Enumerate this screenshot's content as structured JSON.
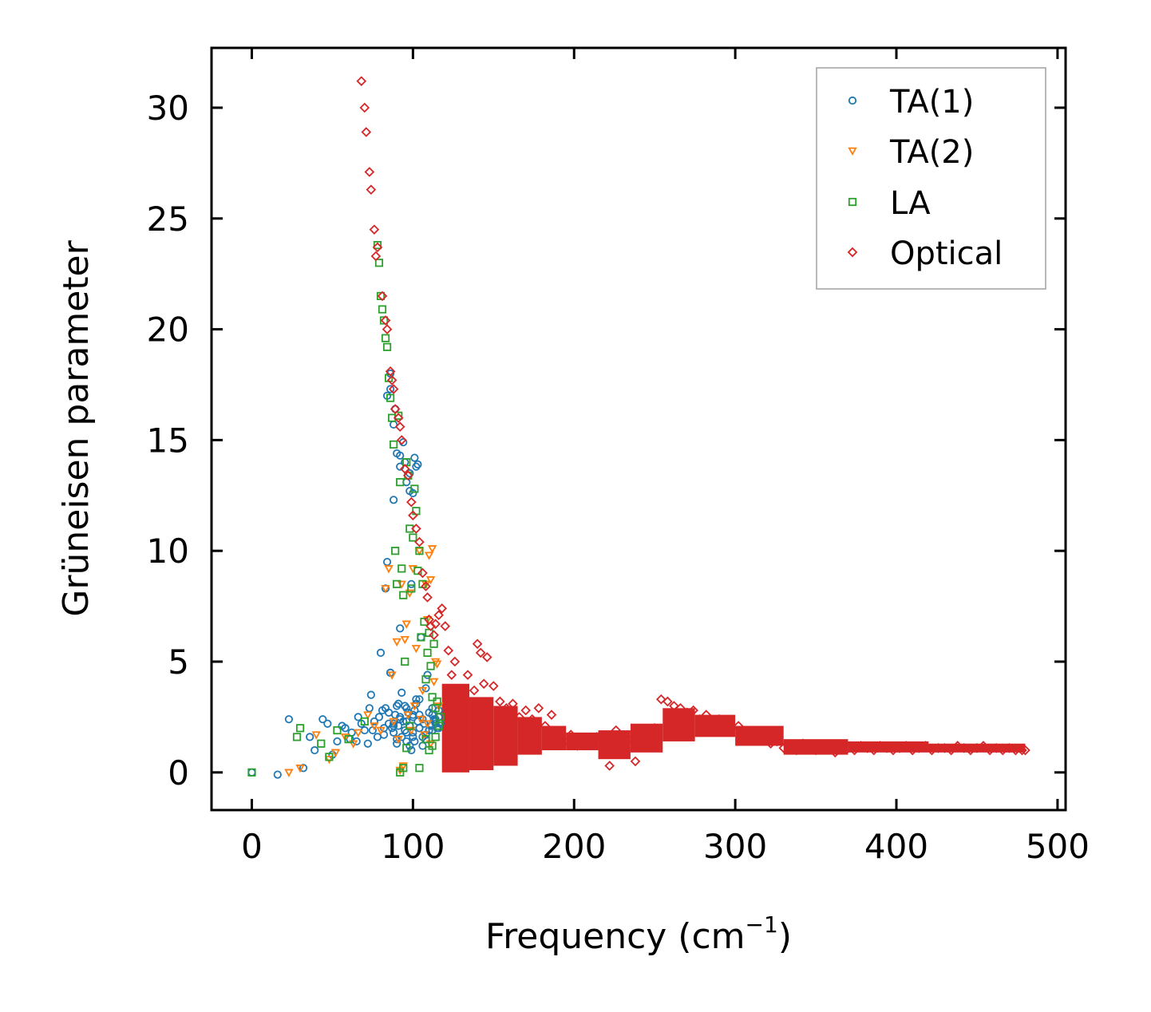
{
  "chart_data": {
    "type": "scatter",
    "title": "",
    "xlabel": "Frequency (cm",
    "xlabel_sup": "−1",
    "xlabel_end": ")",
    "ylabel": "Grüneisen parameter",
    "xlim": [
      -25,
      505
    ],
    "ylim": [
      -1.7,
      32.7
    ],
    "xticks": [
      0,
      100,
      200,
      300,
      400,
      500
    ],
    "yticks": [
      0,
      5,
      10,
      15,
      20,
      25,
      30
    ],
    "xtick_labels": [
      "0",
      "100",
      "200",
      "300",
      "400",
      "500"
    ],
    "ytick_labels": [
      "0",
      "5",
      "10",
      "15",
      "20",
      "25",
      "30"
    ],
    "legend_position": "top-right",
    "grid": false,
    "series": [
      {
        "name": "TA(1)",
        "marker": "circle",
        "color": "#1f77b4",
        "x": [
          0,
          16,
          23,
          32,
          36,
          39,
          44,
          47,
          50,
          53,
          56,
          58,
          61,
          62,
          65,
          66,
          68,
          70,
          72,
          73,
          74,
          75,
          76,
          78,
          79,
          80,
          81,
          82,
          83,
          84,
          85,
          86,
          87,
          88,
          89,
          90,
          90,
          91,
          92,
          93,
          94,
          95,
          96,
          97,
          98,
          99,
          100,
          101,
          102,
          103,
          104,
          105,
          106,
          107,
          108,
          109,
          110,
          111,
          112,
          113,
          114,
          115,
          116,
          117,
          84,
          86,
          88,
          90,
          92,
          94,
          96,
          98,
          100,
          102,
          86,
          89,
          92,
          95,
          98,
          101,
          103,
          83,
          86,
          88,
          91,
          93,
          96,
          99,
          101,
          104,
          82,
          85,
          88,
          92,
          95,
          98,
          100,
          88,
          90,
          92,
          96,
          100,
          104,
          108,
          112,
          102,
          106,
          110,
          114,
          116,
          96,
          100,
          104,
          108,
          112,
          116,
          106,
          110,
          114
        ],
        "y": [
          0,
          -0.1,
          2.4,
          0.2,
          1.6,
          1.0,
          2.4,
          2.2,
          0.8,
          1.4,
          2.1,
          2.0,
          1.5,
          1.8,
          1.4,
          2.5,
          2.2,
          1.9,
          1.3,
          2.9,
          3.5,
          1.9,
          2.3,
          1.6,
          2.5,
          5.4,
          2.8,
          1.7,
          2.9,
          9.5,
          2.2,
          4.5,
          2.0,
          12.3,
          2.6,
          3.0,
          1.5,
          2.1,
          6.5,
          3.6,
          2.3,
          1.9,
          2.9,
          2.7,
          1.2,
          8.5,
          1.8,
          2.8,
          3.3,
          2.3,
          2.0,
          6.1,
          1.6,
          2.2,
          3.8,
          4.4,
          2.7,
          2.1,
          1.9,
          2.4,
          2.3,
          2.0,
          2.5,
          2.2,
          17.0,
          17.3,
          15.7,
          14.4,
          13.8,
          14.9,
          13.1,
          12.7,
          12.6,
          13.8,
          18.0,
          16.4,
          14.3,
          14.0,
          13.5,
          14.2,
          13.9,
          8.3,
          4.5,
          2.1,
          3.1,
          1.6,
          2.3,
          1.0,
          1.4,
          2.6,
          2.0,
          2.7,
          1.8,
          2.5,
          3.0,
          2.1,
          1.6,
          2.2,
          1.3,
          2.4,
          1.8,
          2.6,
          2.0,
          1.5,
          2.9,
          3.1,
          2.4,
          1.9,
          2.2,
          2.8,
          1.4,
          2.5,
          3.3,
          1.7,
          2.6,
          2.0,
          1.2,
          1.9,
          2.4
        ]
      },
      {
        "name": "TA(2)",
        "marker": "triangle-down",
        "color": "#ff7f0e",
        "x": [
          23,
          30,
          40,
          48,
          52,
          58,
          63,
          66,
          72,
          76,
          80,
          83,
          85,
          87,
          88,
          90,
          91,
          93,
          95,
          96,
          98,
          100,
          102,
          104,
          106,
          108,
          109,
          110,
          111,
          112,
          113,
          114,
          115,
          116,
          92,
          94,
          97,
          99,
          101,
          105,
          107,
          109,
          111
        ],
        "y": [
          0,
          0.2,
          1.7,
          0.6,
          0.9,
          1.6,
          1.3,
          1.8,
          2.6,
          2.1,
          1.9,
          8.3,
          9.2,
          4.4,
          2.3,
          5.9,
          1.5,
          8.5,
          6.0,
          6.7,
          8.1,
          9.2,
          5.6,
          10.0,
          3.7,
          8.5,
          6.9,
          9.8,
          8.7,
          10.1,
          4.1,
          5.0,
          4.9,
          3.0,
          0.1,
          0.3,
          2.6,
          1.9,
          3.0,
          2.4,
          1.7,
          2.2,
          1.3
        ]
      },
      {
        "name": "LA",
        "marker": "square",
        "color": "#2ca02c",
        "x": [
          0,
          28,
          30,
          43,
          48,
          53,
          60,
          70,
          78,
          79,
          80,
          81,
          82,
          83,
          84,
          85,
          86,
          87,
          88,
          89,
          90,
          91,
          92,
          93,
          94,
          95,
          96,
          97,
          98,
          99,
          100,
          101,
          102,
          103,
          104,
          105,
          106,
          107,
          108,
          109,
          110,
          111,
          112,
          113,
          114,
          115,
          116,
          117,
          92,
          94,
          96,
          98,
          104,
          108,
          110,
          112,
          114,
          116
        ],
        "y": [
          0,
          1.6,
          2.0,
          1.3,
          0.7,
          1.9,
          1.5,
          2.3,
          23.8,
          23.0,
          21.5,
          20.9,
          20.4,
          19.6,
          19.2,
          17.8,
          16.9,
          16.0,
          14.8,
          10.0,
          8.5,
          16.1,
          13.1,
          9.2,
          8.0,
          5.0,
          14.0,
          13.4,
          11.0,
          8.3,
          10.6,
          12.8,
          11.8,
          9.1,
          10.0,
          6.1,
          8.5,
          6.8,
          4.2,
          5.4,
          6.3,
          4.8,
          3.4,
          5.8,
          2.9,
          3.2,
          2.1,
          2.5,
          0.0,
          0.2,
          1.1,
          2.1,
          0.2,
          1.5,
          1.0,
          1.2,
          1.6,
          2.1
        ]
      },
      {
        "name": "Optical",
        "marker": "diamond",
        "color": "#d62728",
        "x": [
          68,
          70,
          71,
          73,
          74,
          76,
          77,
          78,
          81,
          83,
          84,
          86,
          87,
          88,
          89,
          91,
          92,
          93,
          95,
          97,
          99,
          100,
          102,
          104,
          106,
          108,
          109,
          110,
          111,
          113,
          114,
          116,
          118,
          120,
          122,
          124,
          126,
          128,
          130,
          132,
          134,
          136,
          138,
          140,
          142,
          144,
          146,
          150,
          154,
          158,
          162,
          166,
          170,
          174,
          178,
          182,
          186,
          190,
          194,
          198,
          202,
          206,
          210,
          214,
          218,
          222,
          226,
          230,
          234,
          238,
          242,
          246,
          250,
          254,
          258,
          262,
          266,
          270,
          274,
          278,
          282,
          286,
          290,
          294,
          298,
          302,
          306,
          310,
          314,
          318,
          322,
          326,
          330,
          334,
          338,
          342,
          346,
          350,
          354,
          358,
          362,
          366,
          370,
          374,
          378,
          382,
          386,
          390,
          394,
          398,
          402,
          406,
          410,
          414,
          418,
          422,
          426,
          430,
          434,
          438,
          442,
          446,
          450,
          454,
          458,
          462,
          466,
          470,
          474,
          478,
          480
        ],
        "y": [
          31.2,
          30.0,
          28.9,
          27.1,
          26.3,
          24.5,
          23.3,
          23.7,
          21.5,
          20.4,
          20.0,
          18.1,
          17.7,
          17.3,
          16.4,
          16.0,
          15.6,
          15.0,
          13.7,
          13.4,
          12.2,
          11.6,
          11.0,
          10.4,
          9.0,
          8.4,
          7.9,
          6.9,
          6.6,
          6.2,
          6.7,
          7.1,
          7.4,
          6.6,
          5.5,
          4.4,
          5.0,
          3.5,
          2.9,
          1.1,
          4.4,
          2.8,
          3.7,
          5.8,
          5.4,
          4.0,
          5.2,
          3.9,
          3.2,
          2.9,
          3.1,
          2.5,
          2.8,
          2.4,
          2.9,
          2.1,
          2.6,
          1.6,
          1.4,
          1.7,
          1.2,
          1.5,
          1.3,
          1.6,
          1.1,
          0.3,
          1.9,
          1.2,
          1.5,
          0.5,
          1.8,
          1.3,
          2.0,
          3.3,
          3.2,
          3.0,
          2.9,
          2.7,
          2.8,
          2.4,
          2.6,
          2.3,
          2.4,
          2.2,
          2.0,
          2.1,
          1.8,
          1.7,
          1.5,
          1.6,
          1.3,
          1.4,
          1.1,
          1.2,
          1.0,
          1.3,
          1.1,
          1.0,
          1.2,
          1.1,
          0.9,
          1.2,
          1.1,
          1.0,
          1.2,
          1.1,
          1.0,
          1.2,
          1.1,
          1.0,
          1.1,
          1.2,
          1.0,
          1.1,
          1.2,
          1.0,
          1.1,
          1.1,
          1.0,
          1.2,
          1.1,
          1.0,
          1.1,
          1.2,
          1.0,
          1.1,
          1.0,
          1.1,
          1.0,
          1.0,
          1.0
        ]
      }
    ],
    "optical_bands": [
      {
        "x0": 118,
        "x1": 135,
        "ylo": 0.0,
        "yhi": 4.0
      },
      {
        "x0": 135,
        "x1": 150,
        "ylo": 0.1,
        "yhi": 3.4
      },
      {
        "x0": 150,
        "x1": 165,
        "ylo": 0.3,
        "yhi": 3.0
      },
      {
        "x0": 165,
        "x1": 180,
        "ylo": 0.8,
        "yhi": 2.5
      },
      {
        "x0": 180,
        "x1": 195,
        "ylo": 1.0,
        "yhi": 2.1
      },
      {
        "x0": 195,
        "x1": 215,
        "ylo": 1.0,
        "yhi": 1.8
      },
      {
        "x0": 215,
        "x1": 235,
        "ylo": 0.6,
        "yhi": 1.9
      },
      {
        "x0": 235,
        "x1": 255,
        "ylo": 0.9,
        "yhi": 2.2
      },
      {
        "x0": 255,
        "x1": 275,
        "ylo": 1.4,
        "yhi": 2.9
      },
      {
        "x0": 275,
        "x1": 300,
        "ylo": 1.6,
        "yhi": 2.6
      },
      {
        "x0": 300,
        "x1": 330,
        "ylo": 1.2,
        "yhi": 2.1
      },
      {
        "x0": 330,
        "x1": 370,
        "ylo": 0.8,
        "yhi": 1.5
      },
      {
        "x0": 370,
        "x1": 420,
        "ylo": 0.9,
        "yhi": 1.4
      },
      {
        "x0": 420,
        "x1": 480,
        "ylo": 0.9,
        "yhi": 1.3
      }
    ]
  }
}
